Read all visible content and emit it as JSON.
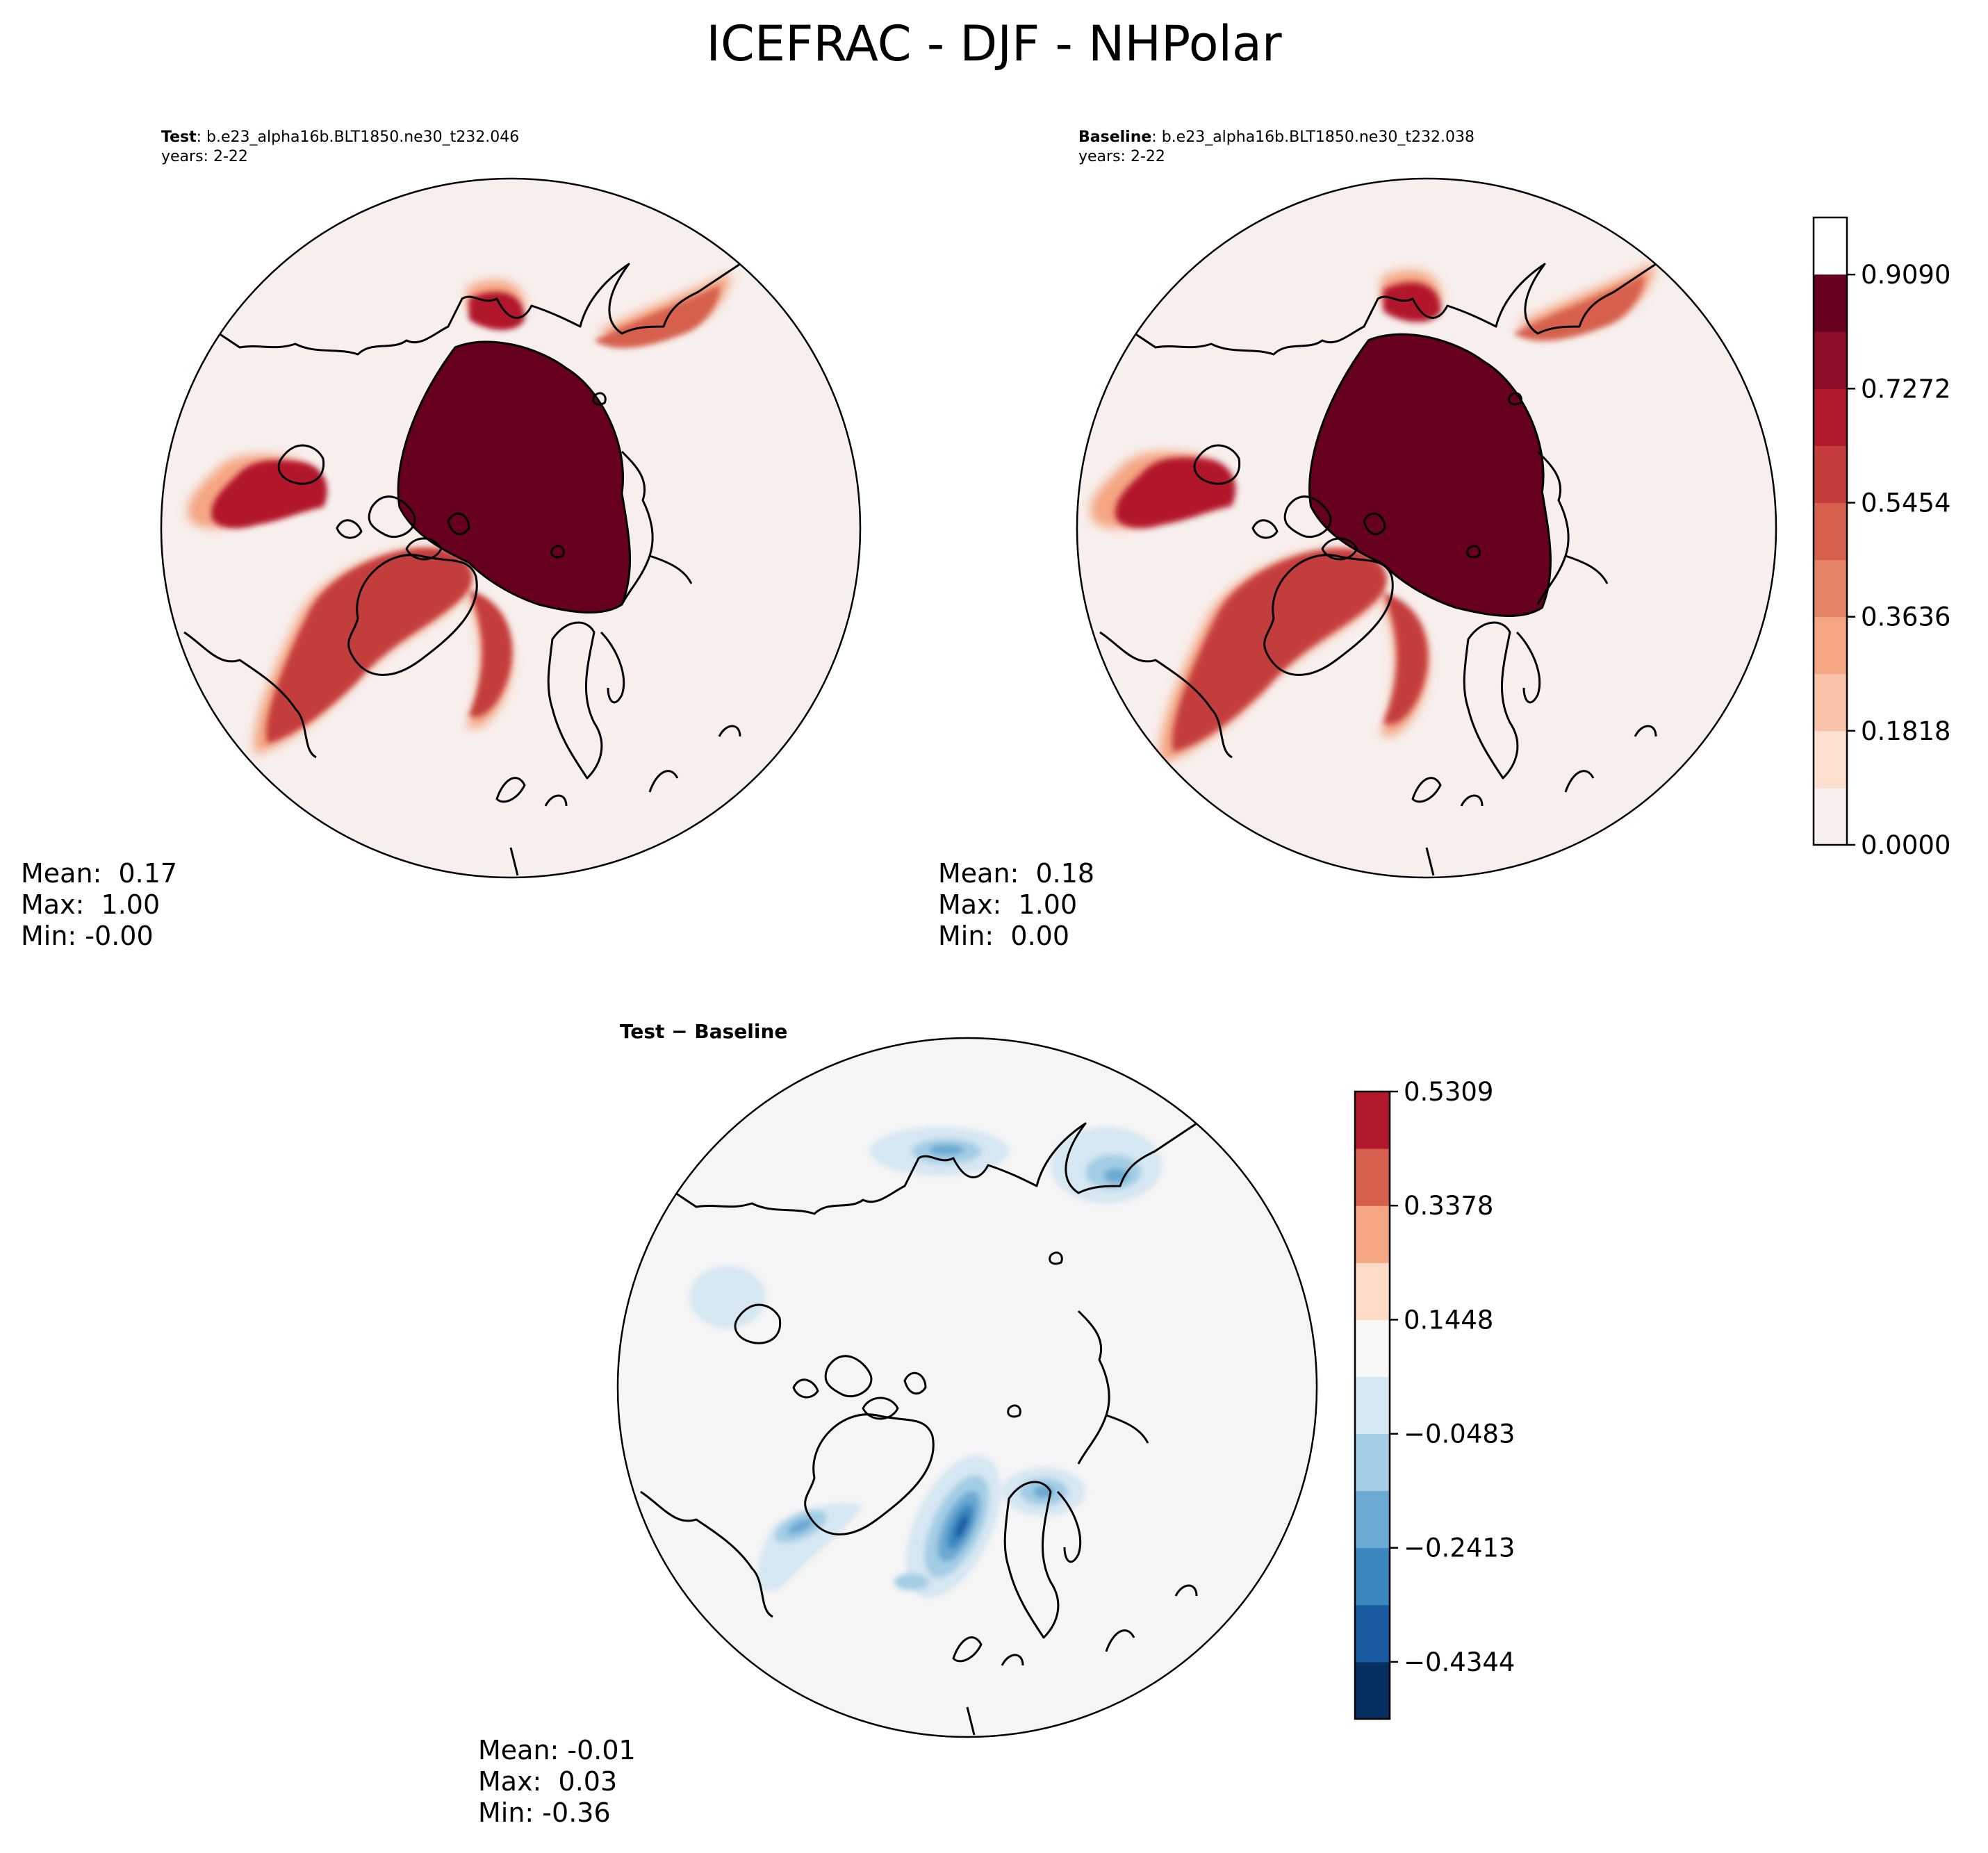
{
  "figure": {
    "title": "ICEFRAC - DJF - NHPolar"
  },
  "panels": {
    "test": {
      "label": "Test",
      "case": ": b.e23_alpha16b.BLT1850.ne30_t232.046",
      "years": "years: 2-22",
      "stats": {
        "mean": "Mean:  0.17",
        "max": "Max:  1.00",
        "min": "Min: -0.00"
      }
    },
    "baseline": {
      "label": "Baseline",
      "case": ": b.e23_alpha16b.BLT1850.ne30_t232.038",
      "years": "years: 2-22",
      "stats": {
        "mean": "Mean:  0.18",
        "max": "Max:  1.00",
        "min": "Min:  0.00"
      }
    },
    "diff": {
      "title": "Test − Baseline",
      "stats": {
        "mean": "Mean: -0.01",
        "max": "Max:  0.03",
        "min": "Min: -0.36"
      }
    }
  },
  "colors": {
    "sea_ice_core": "#67001f",
    "background_fill_top": "#f7efec",
    "background_fill_diff": "#f5f5f5",
    "coastline": "#000000"
  },
  "chart_data": [
    {
      "type": "heatmap",
      "projection": "north-polar-stereographic",
      "panel": "test",
      "colorbar": {
        "levels": [
          0.0,
          0.0909,
          0.1818,
          0.2727,
          0.3636,
          0.4545,
          0.5454,
          0.6363,
          0.7272,
          0.8181,
          0.909,
          1.0
        ],
        "tick_labels": [
          "0.0000",
          "0.1818",
          "0.3636",
          "0.5454",
          "0.7272",
          "0.9090"
        ],
        "colors": [
          "#f7f0ed",
          "#fde0d0",
          "#f9c3a9",
          "#f4a582",
          "#e58467",
          "#d6604d",
          "#c43c3c",
          "#b2182b",
          "#8e0d26",
          "#67001f"
        ],
        "colormap": "RdBu_r (upper half)"
      },
      "stats": {
        "mean": 0.17,
        "max": 1.0,
        "min": -0.0
      }
    },
    {
      "type": "heatmap",
      "projection": "north-polar-stereographic",
      "panel": "baseline",
      "colorbar": "shared with test",
      "stats": {
        "mean": 0.18,
        "max": 1.0,
        "min": 0.0
      }
    },
    {
      "type": "heatmap",
      "projection": "north-polar-stereographic",
      "panel": "diff",
      "colorbar": {
        "levels": [
          -0.5309,
          -0.4344,
          -0.3378,
          -0.2413,
          -0.1448,
          -0.0483,
          0.0483,
          0.1448,
          0.2413,
          0.3378,
          0.4344,
          0.5309
        ],
        "tick_labels": [
          "0.5309",
          "0.3378",
          "0.1448",
          "−0.0483",
          "−0.2413",
          "−0.4344"
        ],
        "colors": [
          "#053061",
          "#1a5aa0",
          "#3b88c0",
          "#6aa9d2",
          "#a3cde5",
          "#d5e7f2",
          "#f7f7f7",
          "#fddbc7",
          "#f4a582",
          "#d6604d",
          "#b2182b",
          "#67001f"
        ],
        "colormap": "RdBu_r"
      },
      "stats": {
        "mean": -0.01,
        "max": 0.03,
        "min": -0.36
      }
    }
  ]
}
